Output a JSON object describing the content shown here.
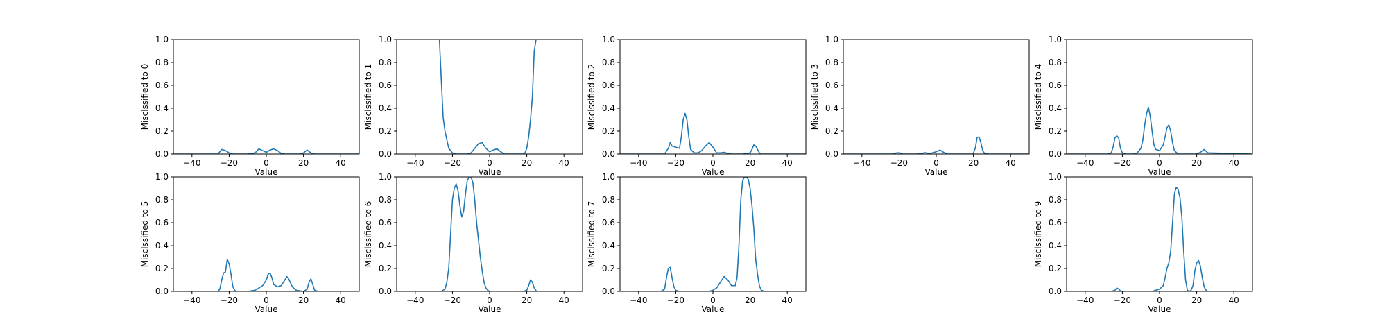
{
  "figure": {
    "xlim": [
      -50,
      50
    ],
    "ylim": [
      0,
      1.0
    ],
    "xticks": [
      -40,
      -20,
      0,
      20,
      40
    ],
    "xtick_labels": [
      "−40",
      "−20",
      "0",
      "20",
      "40"
    ],
    "yticks": [
      0,
      0.2,
      0.4,
      0.6,
      0.8,
      1.0
    ],
    "ytick_labels": [
      "0.0",
      "0.2",
      "0.4",
      "0.6",
      "0.8",
      "1.0"
    ],
    "line_color": "#1f77b4"
  },
  "chart_data": [
    {
      "type": "line",
      "xlabel": "Value",
      "ylabel": "Misclssified to 0",
      "x": [
        -50,
        -30,
        -26,
        -24,
        -22,
        -20,
        -18,
        -10,
        -6,
        -4,
        -2,
        0,
        2,
        4,
        6,
        8,
        10,
        18,
        20,
        22,
        24,
        26,
        50
      ],
      "y": [
        0,
        0,
        0,
        0.04,
        0.03,
        0.01,
        0,
        0,
        0.01,
        0.045,
        0.03,
        0.015,
        0.035,
        0.045,
        0.03,
        0.005,
        0,
        0,
        0.01,
        0.035,
        0.01,
        0,
        0
      ]
    },
    {
      "type": "line",
      "xlabel": "Value",
      "ylabel": "Misclssified to 1",
      "x": [
        -27,
        -26,
        -25,
        -24,
        -22,
        -20,
        -18,
        -12,
        -10,
        -8,
        -6,
        -4,
        -2,
        0,
        2,
        4,
        6,
        8,
        14,
        18,
        19,
        20,
        21,
        22,
        23,
        24,
        25,
        26
      ],
      "y": [
        1.0,
        0.65,
        0.32,
        0.2,
        0.05,
        0.01,
        0,
        0,
        0.01,
        0.05,
        0.09,
        0.1,
        0.05,
        0.02,
        0.035,
        0.045,
        0.02,
        0,
        0,
        0,
        0.01,
        0.05,
        0.15,
        0.3,
        0.5,
        0.9,
        1.0,
        1.0
      ]
    },
    {
      "type": "line",
      "xlabel": "Value",
      "ylabel": "Misclssified to 2",
      "x": [
        -50,
        -26,
        -24,
        -23,
        -22,
        -20,
        -18,
        -17,
        -16,
        -15,
        -14,
        -13,
        -12,
        -10,
        -8,
        -6,
        -4,
        -2,
        0,
        2,
        4,
        6,
        8,
        10,
        16,
        20,
        21,
        22,
        23,
        24,
        25,
        26,
        30,
        50
      ],
      "y": [
        0,
        0,
        0.05,
        0.1,
        0.07,
        0.06,
        0.05,
        0.15,
        0.3,
        0.355,
        0.3,
        0.15,
        0.04,
        0.01,
        0.01,
        0.03,
        0.07,
        0.1,
        0.06,
        0.01,
        0.01,
        0.015,
        0.005,
        0,
        0,
        0.01,
        0.04,
        0.08,
        0.07,
        0.04,
        0.01,
        0,
        0,
        0
      ]
    },
    {
      "type": "line",
      "xlabel": "Value",
      "ylabel": "Misclssified to 3",
      "x": [
        -50,
        -24,
        -22,
        -20,
        -18,
        -10,
        -8,
        -6,
        -4,
        -2,
        0,
        2,
        4,
        6,
        18,
        19,
        20,
        21,
        22,
        23,
        24,
        25,
        26,
        28,
        50
      ],
      "y": [
        0,
        0,
        0.008,
        0.012,
        0,
        0,
        0.005,
        0.012,
        0.005,
        0.01,
        0.02,
        0.035,
        0.015,
        0,
        0,
        0,
        0.01,
        0.05,
        0.145,
        0.15,
        0.1,
        0.03,
        0.005,
        0,
        0
      ]
    },
    {
      "type": "line",
      "xlabel": "Value",
      "ylabel": "Misclssified to 4",
      "x": [
        -50,
        -28,
        -26,
        -25,
        -24,
        -23,
        -22,
        -21,
        -20,
        -18,
        -14,
        -12,
        -10,
        -9,
        -8,
        -7,
        -6,
        -5,
        -4,
        -3,
        -2,
        0,
        2,
        3,
        4,
        5,
        6,
        7,
        8,
        10,
        12,
        20,
        22,
        24,
        26,
        50
      ],
      "y": [
        0,
        0,
        0.01,
        0.06,
        0.14,
        0.16,
        0.14,
        0.05,
        0.01,
        0,
        0,
        0.01,
        0.05,
        0.12,
        0.25,
        0.35,
        0.41,
        0.33,
        0.2,
        0.08,
        0.04,
        0.03,
        0.08,
        0.15,
        0.23,
        0.255,
        0.2,
        0.1,
        0.03,
        0,
        0,
        0,
        0.015,
        0.04,
        0.01,
        0
      ]
    },
    {
      "type": "line",
      "xlabel": "Value",
      "ylabel": "Misclssified to 5",
      "x": [
        -50,
        -26,
        -25,
        -24,
        -23,
        -22,
        -21,
        -20,
        -19,
        -18,
        -17,
        -16,
        -10,
        -6,
        -4,
        -2,
        0,
        1,
        2,
        3,
        4,
        6,
        8,
        10,
        11,
        12,
        14,
        16,
        20,
        22,
        23,
        24,
        25,
        26,
        28,
        50
      ],
      "y": [
        0,
        0,
        0.02,
        0.1,
        0.16,
        0.17,
        0.28,
        0.24,
        0.15,
        0.04,
        0.01,
        0,
        0,
        0.01,
        0.03,
        0.05,
        0.1,
        0.15,
        0.16,
        0.12,
        0.06,
        0.04,
        0.05,
        0.1,
        0.13,
        0.11,
        0.04,
        0.01,
        0,
        0.02,
        0.08,
        0.11,
        0.06,
        0.01,
        0,
        0
      ]
    },
    {
      "type": "line",
      "xlabel": "Value",
      "ylabel": "Misclssified to 6",
      "x": [
        -50,
        -26,
        -24,
        -23,
        -22,
        -21,
        -20,
        -19,
        -18,
        -17,
        -16,
        -15,
        -14,
        -13,
        -12,
        -11,
        -10,
        -9,
        -8,
        -7,
        -6,
        -5,
        -4,
        -3,
        -2,
        -1,
        0,
        2,
        10,
        18,
        20,
        21,
        22,
        23,
        24,
        25,
        26,
        28,
        50
      ],
      "y": [
        0,
        0,
        0.02,
        0.08,
        0.2,
        0.5,
        0.8,
        0.9,
        0.94,
        0.88,
        0.75,
        0.65,
        0.7,
        0.85,
        0.97,
        1.0,
        1.0,
        0.95,
        0.8,
        0.6,
        0.45,
        0.3,
        0.18,
        0.08,
        0.03,
        0.01,
        0,
        0,
        0,
        0,
        0.01,
        0.05,
        0.1,
        0.08,
        0.03,
        0.005,
        0,
        0,
        0
      ]
    },
    {
      "type": "line",
      "xlabel": "Value",
      "ylabel": "Misclssified to 7",
      "x": [
        -50,
        -28,
        -26,
        -25,
        -24,
        -23,
        -22,
        -21,
        -20,
        -18,
        -10,
        -2,
        0,
        2,
        4,
        6,
        8,
        10,
        12,
        13,
        14,
        15,
        16,
        17,
        18,
        19,
        20,
        21,
        22,
        23,
        24,
        25,
        26,
        28,
        50
      ],
      "y": [
        0,
        0,
        0.02,
        0.12,
        0.2,
        0.21,
        0.12,
        0.04,
        0.01,
        0,
        0,
        0,
        0.01,
        0.03,
        0.08,
        0.13,
        0.1,
        0.05,
        0.05,
        0.12,
        0.4,
        0.8,
        0.97,
        1.0,
        1.0,
        0.98,
        0.9,
        0.75,
        0.55,
        0.28,
        0.15,
        0.05,
        0.01,
        0,
        0
      ]
    },
    null,
    {
      "type": "line",
      "xlabel": "Value",
      "ylabel": "Misclssified to 9",
      "x": [
        -50,
        -26,
        -24,
        -23,
        -22,
        -21,
        -20,
        -18,
        -4,
        0,
        2,
        3,
        4,
        5,
        6,
        7,
        8,
        9,
        10,
        11,
        12,
        13,
        14,
        15,
        16,
        17,
        18,
        19,
        20,
        21,
        22,
        23,
        24,
        25,
        26,
        28,
        50
      ],
      "y": [
        0,
        0,
        0.01,
        0.03,
        0.02,
        0.005,
        0,
        0,
        0,
        0.02,
        0.05,
        0.12,
        0.2,
        0.25,
        0.35,
        0.6,
        0.85,
        0.91,
        0.89,
        0.82,
        0.65,
        0.35,
        0.1,
        0.01,
        0,
        0.01,
        0.05,
        0.18,
        0.25,
        0.27,
        0.22,
        0.12,
        0.04,
        0.01,
        0,
        0,
        0
      ]
    }
  ]
}
